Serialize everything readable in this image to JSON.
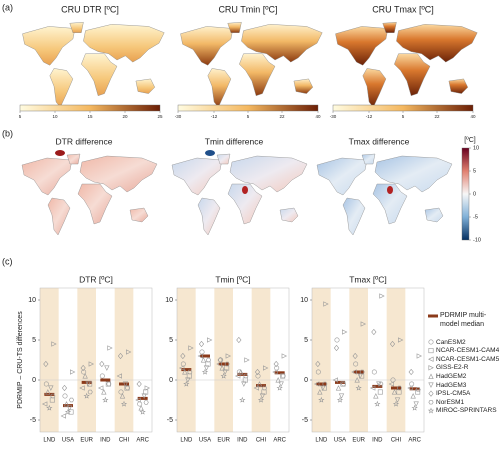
{
  "map_panels": [
    {
      "label": "(a)",
      "maps": [
        {
          "title": "CRU DTR [ºC]",
          "ticks": [
            5,
            10,
            15,
            20,
            25
          ]
        },
        {
          "title": "CRU Tmin [ºC]",
          "ticks": [
            -30,
            -12,
            5,
            22,
            40
          ]
        },
        {
          "title": "CRU Tmax [ºC]",
          "ticks": [
            -30,
            -12,
            5,
            22,
            40
          ]
        }
      ]
    },
    {
      "label": "(b)",
      "maps": [
        {
          "title": "DTR difference"
        },
        {
          "title": "Tmin difference"
        },
        {
          "title": "Tmax difference"
        }
      ],
      "colorbar": {
        "title": "[ºC]",
        "ticks": [
          10,
          5,
          0,
          -5,
          -10
        ]
      }
    }
  ],
  "panel_c_label": "(c)",
  "chart_data": [
    {
      "type": "strip",
      "title": "DTR [ºC]",
      "y_label": "PDRMIP – CRU-TS differences",
      "categories": [
        "LND",
        "USA",
        "EUR",
        "IND",
        "CHI",
        "ARC"
      ],
      "ylim": [
        -6.5,
        11.5
      ],
      "yticks": [
        -5,
        0,
        5,
        10
      ],
      "series": [
        {
          "name": "PDRMIP multi-model median",
          "color": "#8b3a1a",
          "marker": "bar",
          "values": [
            -1.8,
            -3.2,
            -0.3,
            0.0,
            -0.5,
            -2.3
          ]
        },
        {
          "name": "CanESM2",
          "color": "#999999",
          "marker": "circle",
          "values": [
            -0.5,
            -2.0,
            1.0,
            0.5,
            -1.5,
            -3.0
          ]
        },
        {
          "name": "NCAR-CESM1-CAM4",
          "color": "#999999",
          "marker": "square",
          "values": [
            -2.5,
            -4.0,
            -0.5,
            -0.5,
            -1.0,
            -1.5
          ]
        },
        {
          "name": "NCAR-CESM1-CAM5",
          "color": "#999999",
          "marker": "tri-left",
          "values": [
            -3.0,
            -4.5,
            -1.0,
            -1.0,
            0.5,
            -2.5
          ]
        },
        {
          "name": "GISS-E2-R",
          "color": "#999999",
          "marker": "tri-right",
          "values": [
            4.5,
            1.0,
            2.0,
            4.0,
            3.5,
            -1.0
          ]
        },
        {
          "name": "HadGEM2",
          "color": "#999999",
          "marker": "tri-up",
          "values": [
            -1.5,
            -3.0,
            0.5,
            -1.5,
            -2.0,
            -3.5
          ]
        },
        {
          "name": "HadGEM3",
          "color": "#999999",
          "marker": "tri-down",
          "values": [
            -1.0,
            -3.5,
            -0.5,
            1.5,
            -0.5,
            -2.0
          ]
        },
        {
          "name": "IPSL-CM5A",
          "color": "#999999",
          "marker": "diamond",
          "values": [
            2.0,
            -1.0,
            1.5,
            2.0,
            3.0,
            -0.5
          ]
        },
        {
          "name": "NorESM1",
          "color": "#999999",
          "marker": "hexagon",
          "values": [
            -2.0,
            -2.5,
            -1.5,
            -0.5,
            -1.0,
            -2.8
          ]
        },
        {
          "name": "MIROC-SPRINTARS",
          "color": "#999999",
          "marker": "star",
          "values": [
            -3.5,
            -4.0,
            -2.0,
            -2.5,
            -3.0,
            -4.0
          ]
        }
      ]
    },
    {
      "type": "strip",
      "title": "Tmin [ºC]",
      "categories": [
        "LND",
        "USA",
        "EUR",
        "IND",
        "CHI",
        "ARC"
      ],
      "ylim": [
        -6.5,
        11.5
      ],
      "yticks": [
        -5,
        0,
        5,
        10
      ],
      "series": [
        {
          "name": "PDRMIP multi-model median",
          "color": "#8b3a1a",
          "marker": "bar",
          "values": [
            1.3,
            3.0,
            2.0,
            0.7,
            -0.7,
            0.9
          ]
        },
        {
          "name": "CanESM2",
          "color": "#999999",
          "marker": "circle",
          "values": [
            2.0,
            3.5,
            2.5,
            1.0,
            0.5,
            1.5
          ]
        },
        {
          "name": "NCAR-CESM1-CAM4",
          "color": "#999999",
          "marker": "square",
          "values": [
            0.5,
            2.0,
            1.5,
            0.0,
            -1.5,
            0.5
          ]
        },
        {
          "name": "NCAR-CESM1-CAM5",
          "color": "#999999",
          "marker": "tri-left",
          "values": [
            1.5,
            3.0,
            2.0,
            0.5,
            -1.0,
            1.0
          ]
        },
        {
          "name": "GISS-E2-R",
          "color": "#999999",
          "marker": "tri-right",
          "values": [
            4.0,
            5.0,
            3.0,
            2.5,
            1.5,
            3.0
          ]
        },
        {
          "name": "HadGEM2",
          "color": "#999999",
          "marker": "tri-up",
          "values": [
            1.0,
            2.5,
            1.5,
            1.0,
            -0.5,
            0.0
          ]
        },
        {
          "name": "HadGEM3",
          "color": "#999999",
          "marker": "tri-down",
          "values": [
            0.0,
            1.5,
            1.0,
            -0.5,
            -2.0,
            -0.5
          ]
        },
        {
          "name": "IPSL-CM5A",
          "color": "#999999",
          "marker": "diamond",
          "values": [
            3.0,
            4.5,
            2.5,
            5.0,
            1.0,
            2.0
          ]
        },
        {
          "name": "NorESM1",
          "color": "#999999",
          "marker": "hexagon",
          "values": [
            1.0,
            2.5,
            2.0,
            0.5,
            -1.0,
            0.5
          ]
        },
        {
          "name": "MIROC-SPRINTARS",
          "color": "#999999",
          "marker": "star",
          "values": [
            -0.5,
            1.0,
            0.5,
            -2.5,
            -2.5,
            -1.0
          ]
        }
      ]
    },
    {
      "type": "strip",
      "title": "Tmax [ºC]",
      "categories": [
        "LND",
        "USA",
        "EUR",
        "IND",
        "CHI",
        "ARC"
      ],
      "ylim": [
        -6.5,
        11.5
      ],
      "yticks": [
        -5,
        0,
        5,
        10
      ],
      "series": [
        {
          "name": "PDRMIP multi-model median",
          "color": "#8b3a1a",
          "marker": "bar",
          "values": [
            -0.5,
            -0.3,
            1.0,
            -0.8,
            -1.0,
            -1.1
          ]
        },
        {
          "name": "CanESM2",
          "color": "#999999",
          "marker": "circle",
          "values": [
            1.0,
            5.0,
            2.0,
            1.0,
            0.0,
            -0.5
          ]
        },
        {
          "name": "NCAR-CESM1-CAM4",
          "color": "#999999",
          "marker": "square",
          "values": [
            -1.0,
            -0.5,
            0.5,
            -1.5,
            -1.5,
            -1.5
          ]
        },
        {
          "name": "NCAR-CESM1-CAM5",
          "color": "#999999",
          "marker": "tri-left",
          "values": [
            -0.5,
            0.0,
            1.0,
            -1.0,
            -0.5,
            -1.0
          ]
        },
        {
          "name": "GISS-E2-R",
          "color": "#999999",
          "marker": "tri-right",
          "values": [
            9.5,
            6.0,
            7.0,
            10.5,
            5.0,
            3.0
          ]
        },
        {
          "name": "HadGEM2",
          "color": "#999999",
          "marker": "tri-up",
          "values": [
            -1.5,
            -1.0,
            0.0,
            -2.0,
            -1.5,
            -2.0
          ]
        },
        {
          "name": "HadGEM3",
          "color": "#999999",
          "marker": "tri-down",
          "values": [
            -1.0,
            -2.0,
            0.5,
            -0.5,
            -2.5,
            -3.0
          ]
        },
        {
          "name": "IPSL-CM5A",
          "color": "#999999",
          "marker": "diamond",
          "values": [
            2.0,
            4.0,
            3.0,
            6.0,
            4.5,
            1.0
          ]
        },
        {
          "name": "NorESM1",
          "color": "#999999",
          "marker": "hexagon",
          "values": [
            -0.5,
            -0.5,
            1.0,
            -0.5,
            -1.0,
            -1.2
          ]
        },
        {
          "name": "MIROC-SPRINTARS",
          "color": "#999999",
          "marker": "star",
          "values": [
            -2.5,
            -2.5,
            -1.0,
            -3.0,
            -3.0,
            -3.5
          ]
        }
      ]
    }
  ]
}
